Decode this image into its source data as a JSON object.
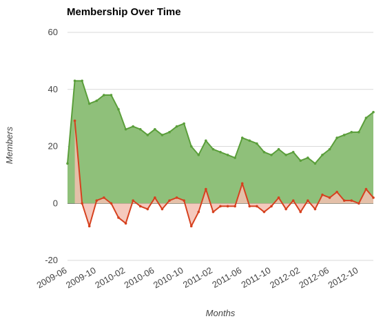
{
  "chart_data": {
    "type": "area",
    "title": "Membership Over Time",
    "xlabel": "Months",
    "ylabel": "Members",
    "ylim": [
      -20,
      60
    ],
    "yticks": [
      -20,
      0,
      20,
      40,
      60
    ],
    "xtick_labels": [
      "2009-06",
      "2009-10",
      "2010-02",
      "2010-06",
      "2010-10",
      "2011-02",
      "2011-06",
      "2011-10",
      "2012-02",
      "2012-06",
      "2012-10"
    ],
    "x": [
      "2009-06",
      "2009-07",
      "2009-08",
      "2009-09",
      "2009-10",
      "2009-11",
      "2009-12",
      "2010-01",
      "2010-02",
      "2010-03",
      "2010-04",
      "2010-05",
      "2010-06",
      "2010-07",
      "2010-08",
      "2010-09",
      "2010-10",
      "2010-11",
      "2010-12",
      "2011-01",
      "2011-02",
      "2011-03",
      "2011-04",
      "2011-05",
      "2011-06",
      "2011-07",
      "2011-08",
      "2011-09",
      "2011-10",
      "2011-11",
      "2011-12",
      "2012-01",
      "2012-02",
      "2012-03",
      "2012-04",
      "2012-05",
      "2012-06",
      "2012-07",
      "2012-08",
      "2012-09",
      "2012-10",
      "2012-11",
      "2012-12"
    ],
    "grid": true,
    "series": [
      {
        "name": "",
        "color": "#5a9e3a",
        "fill": "#8fc07a",
        "values": [
          14,
          43,
          43,
          35,
          36,
          38,
          38,
          33,
          26,
          27,
          26,
          24,
          26,
          24,
          25,
          27,
          28,
          20,
          17,
          22,
          19,
          18,
          17,
          16,
          23,
          22,
          21,
          18,
          17,
          19,
          17,
          18,
          15,
          16,
          14,
          17,
          19,
          23,
          24,
          25,
          25,
          30,
          32
        ]
      },
      {
        "name": "",
        "color": "#d6401e",
        "fill": "#f3bfb2",
        "values": [
          null,
          29,
          0,
          -8,
          1,
          2,
          0,
          -5,
          -7,
          1,
          -1,
          -2,
          2,
          -2,
          1,
          2,
          1,
          -8,
          -3,
          5,
          -3,
          -1,
          -1,
          -1,
          7,
          -1,
          -1,
          -3,
          -1,
          2,
          -2,
          1,
          -3,
          1,
          -2,
          3,
          2,
          4,
          1,
          1,
          0,
          5,
          2
        ]
      }
    ]
  }
}
